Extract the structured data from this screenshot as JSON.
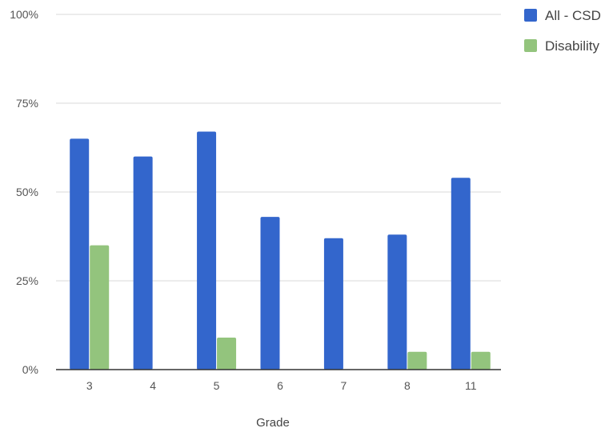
{
  "chart_data": {
    "type": "bar",
    "title": "",
    "xlabel": "Grade",
    "ylabel": "",
    "categories": [
      "3",
      "4",
      "5",
      "6",
      "7",
      "8",
      "11"
    ],
    "series": [
      {
        "name": "All - CSD",
        "values": [
          65,
          60,
          67,
          43,
          37,
          38,
          54
        ],
        "color": "#3366cc"
      },
      {
        "name": "Disability",
        "values": [
          35,
          0,
          9,
          0,
          0,
          5,
          5
        ],
        "color": "#93c47d"
      }
    ],
    "ylim": [
      0,
      100
    ],
    "yticks": [
      0,
      25,
      50,
      75,
      100
    ],
    "ytick_labels": [
      "0%",
      "25%",
      "50%",
      "75%",
      "100%"
    ],
    "grid": true,
    "legend_position": "top-right"
  }
}
